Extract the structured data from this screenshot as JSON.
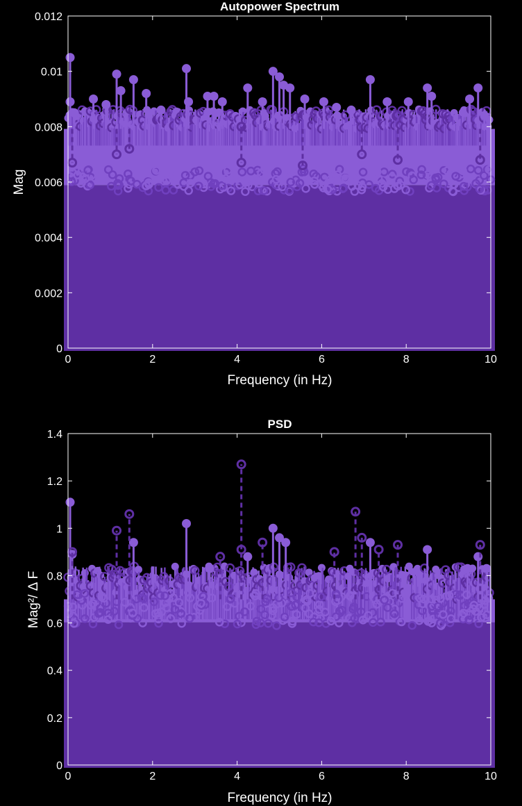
{
  "colors": {
    "background": "#000000",
    "axes": "#ffffff",
    "series_light": "#8a5cd6",
    "series_dark": "#5e2fa3",
    "series_mid": "#7040bf"
  },
  "chart_data": [
    {
      "type": "stem",
      "title": "Autopower Spectrum",
      "xlabel": "Frequency (in Hz)",
      "ylabel": "Mag",
      "xlim": [
        0,
        10
      ],
      "ylim": [
        0,
        0.012
      ],
      "xticks": [
        0,
        2,
        4,
        6,
        8,
        10
      ],
      "xtick_labels": [
        "0",
        "2",
        "4",
        "6",
        "8",
        "10"
      ],
      "yticks": [
        0,
        0.002,
        0.004,
        0.006,
        0.008,
        0.01,
        0.012
      ],
      "ytick_labels": [
        "0",
        "0.002",
        "0.004",
        "0.006",
        "0.008",
        "0.01",
        "0.012"
      ],
      "grid": false,
      "series": [
        {
          "marker": "filled-circle",
          "line": "solid",
          "color": "#8a5cd6",
          "peaks": [
            {
              "x": 0.05,
              "y": 0.0105
            },
            {
              "x": 0.05,
              "y": 0.0089
            },
            {
              "x": 0.15,
              "y": 0.0085
            },
            {
              "x": 0.6,
              "y": 0.009
            },
            {
              "x": 0.9,
              "y": 0.0088
            },
            {
              "x": 1.15,
              "y": 0.0099
            },
            {
              "x": 1.25,
              "y": 0.0093
            },
            {
              "x": 1.55,
              "y": 0.0097
            },
            {
              "x": 1.85,
              "y": 0.0092
            },
            {
              "x": 2.2,
              "y": 0.0086
            },
            {
              "x": 2.8,
              "y": 0.0101
            },
            {
              "x": 2.85,
              "y": 0.0089
            },
            {
              "x": 3.3,
              "y": 0.0091
            },
            {
              "x": 3.45,
              "y": 0.0091
            },
            {
              "x": 3.65,
              "y": 0.0089
            },
            {
              "x": 4.25,
              "y": 0.0094
            },
            {
              "x": 4.6,
              "y": 0.0089
            },
            {
              "x": 4.85,
              "y": 0.01
            },
            {
              "x": 5.0,
              "y": 0.0098
            },
            {
              "x": 5.1,
              "y": 0.0095
            },
            {
              "x": 5.25,
              "y": 0.0094
            },
            {
              "x": 5.6,
              "y": 0.009
            },
            {
              "x": 6.05,
              "y": 0.0089
            },
            {
              "x": 6.35,
              "y": 0.0087
            },
            {
              "x": 6.7,
              "y": 0.0086
            },
            {
              "x": 7.15,
              "y": 0.0097
            },
            {
              "x": 7.55,
              "y": 0.0089
            },
            {
              "x": 8.05,
              "y": 0.0089
            },
            {
              "x": 8.5,
              "y": 0.0094
            },
            {
              "x": 8.6,
              "y": 0.0091
            },
            {
              "x": 9.5,
              "y": 0.009
            },
            {
              "x": 9.7,
              "y": 0.0094
            },
            {
              "x": 9.85,
              "y": 0.0084
            }
          ]
        },
        {
          "marker": "open-circle",
          "line": "dashed",
          "color": "#5e2fa3",
          "peaks": [
            {
              "x": 0.1,
              "y": 0.0067
            },
            {
              "x": 1.15,
              "y": 0.007
            },
            {
              "x": 1.45,
              "y": 0.0072
            },
            {
              "x": 4.1,
              "y": 0.008
            },
            {
              "x": 4.1,
              "y": 0.0067
            },
            {
              "x": 5.55,
              "y": 0.0066
            },
            {
              "x": 6.95,
              "y": 0.007
            },
            {
              "x": 7.8,
              "y": 0.0068
            },
            {
              "x": 9.75,
              "y": 0.0068
            }
          ]
        }
      ]
    },
    {
      "type": "stem",
      "title": "PSD",
      "xlabel": "Frequency (in Hz)",
      "ylabel": "Mag²/ Δ F",
      "xlim": [
        0,
        10
      ],
      "ylim": [
        0,
        1.4
      ],
      "xticks": [
        0,
        2,
        4,
        6,
        8,
        10
      ],
      "xtick_labels": [
        "0",
        "2",
        "4",
        "6",
        "8",
        "10"
      ],
      "yticks": [
        0,
        0.2,
        0.4,
        0.6,
        0.8,
        1,
        1.2,
        1.4
      ],
      "ytick_labels": [
        "0",
        "0.2",
        "0.4",
        "0.6",
        "0.8",
        "1",
        "1.2",
        "1.4"
      ],
      "grid": false,
      "series": [
        {
          "marker": "filled-circle",
          "line": "solid",
          "color": "#8a5cd6",
          "peaks": [
            {
              "x": 0.05,
              "y": 1.11
            },
            {
              "x": 0.1,
              "y": 0.89
            },
            {
              "x": 1.55,
              "y": 0.94
            },
            {
              "x": 2.8,
              "y": 1.02
            },
            {
              "x": 3.35,
              "y": 0.83
            },
            {
              "x": 4.25,
              "y": 0.88
            },
            {
              "x": 4.85,
              "y": 1.0
            },
            {
              "x": 5.0,
              "y": 0.96
            },
            {
              "x": 5.15,
              "y": 0.94
            },
            {
              "x": 7.15,
              "y": 0.94
            },
            {
              "x": 8.5,
              "y": 0.91
            },
            {
              "x": 9.45,
              "y": 0.83
            },
            {
              "x": 9.7,
              "y": 0.88
            },
            {
              "x": 9.9,
              "y": 0.83
            }
          ]
        },
        {
          "marker": "open-circle",
          "line": "dashed",
          "color": "#5e2fa3",
          "peaks": [
            {
              "x": 0.1,
              "y": 0.9
            },
            {
              "x": 1.15,
              "y": 0.99
            },
            {
              "x": 1.45,
              "y": 1.06
            },
            {
              "x": 3.6,
              "y": 0.88
            },
            {
              "x": 4.1,
              "y": 1.27
            },
            {
              "x": 4.1,
              "y": 0.91
            },
            {
              "x": 4.6,
              "y": 0.94
            },
            {
              "x": 6.3,
              "y": 0.9
            },
            {
              "x": 6.8,
              "y": 1.07
            },
            {
              "x": 6.95,
              "y": 0.96
            },
            {
              "x": 7.35,
              "y": 0.91
            },
            {
              "x": 7.8,
              "y": 0.93
            },
            {
              "x": 9.75,
              "y": 0.93
            }
          ]
        }
      ]
    }
  ]
}
